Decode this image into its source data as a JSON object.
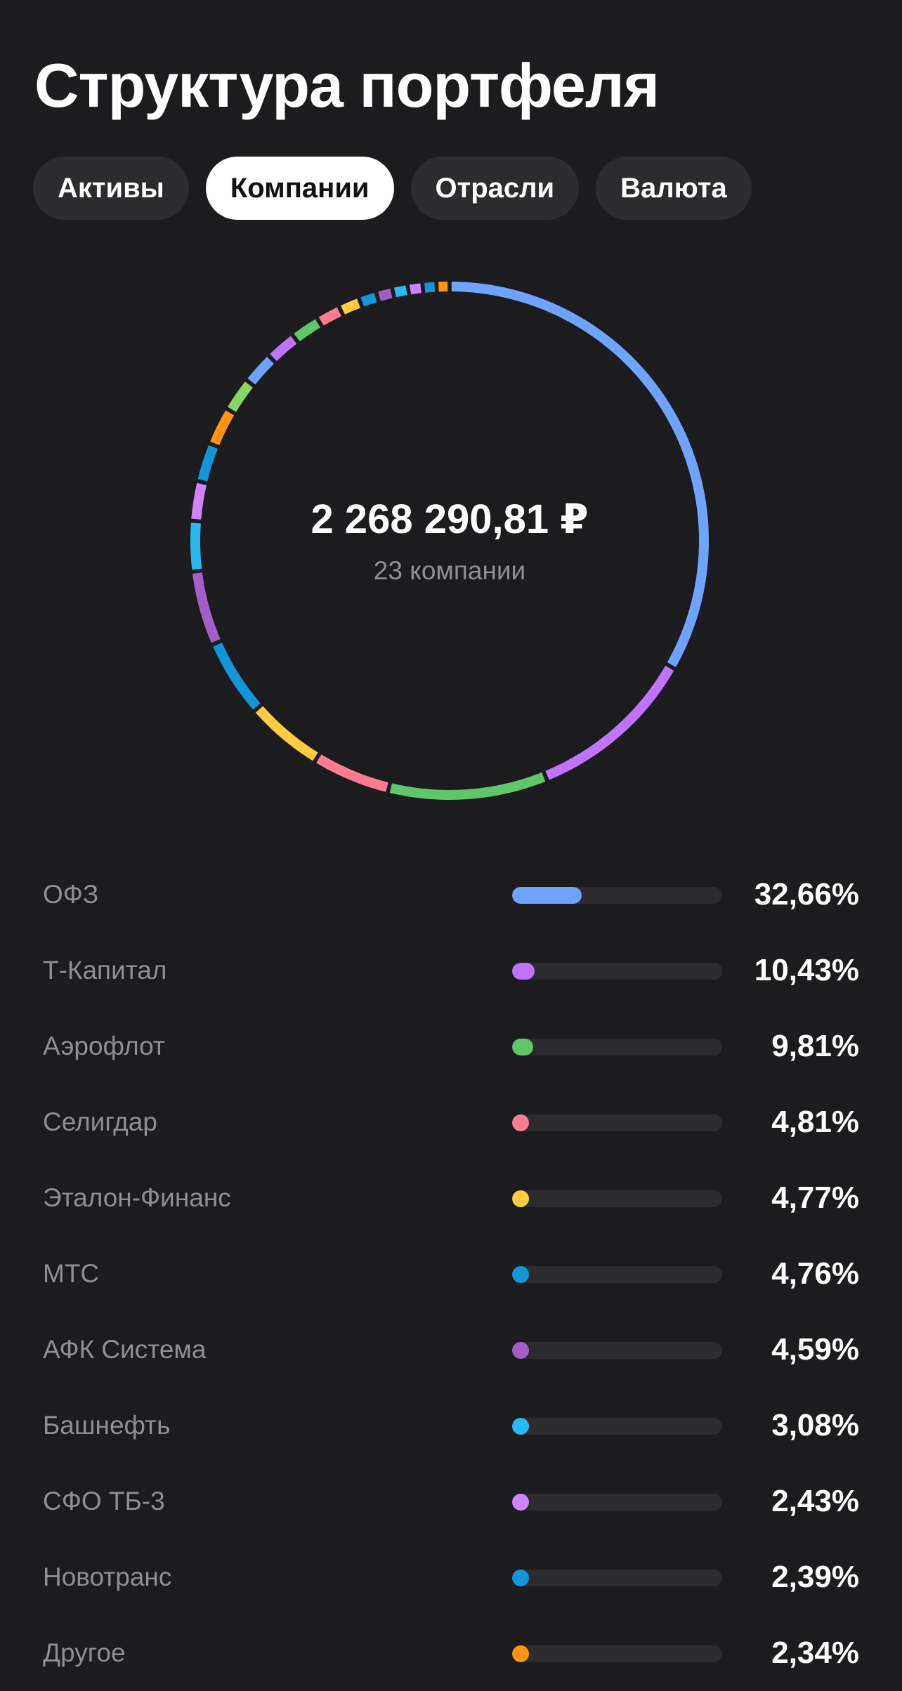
{
  "header": {
    "title": "Структура портфеля"
  },
  "tabs": [
    {
      "label": "Активы",
      "active": false
    },
    {
      "label": "Компании",
      "active": true
    },
    {
      "label": "Отрасли",
      "active": false
    },
    {
      "label": "Валюта",
      "active": false
    }
  ],
  "summary": {
    "total": "2 268 290,81 ₽",
    "count": "23 компании"
  },
  "chart_data": {
    "type": "pie",
    "categories": [
      "ОФЗ",
      "Т-Капитал",
      "Аэрофлот",
      "Селигдар",
      "Эталон-Финанс",
      "МТС",
      "АФК Система",
      "Башнефть",
      "СФО ТБ-3",
      "Новотранс",
      "Другое"
    ],
    "values": [
      32.66,
      10.43,
      9.81,
      4.81,
      4.77,
      4.76,
      4.59,
      3.08,
      2.43,
      2.39,
      2.34
    ],
    "colors": [
      "#6ea3ff",
      "#bf73ff",
      "#5fc66a",
      "#ff7b92",
      "#ffcc3f",
      "#1296d9",
      "#a35ec8",
      "#28b9f2",
      "#d083ff",
      "#1296d9",
      "#ff9410"
    ],
    "remaining_segments": [
      {
        "value": 2.1,
        "color": "#8ad461"
      },
      {
        "value": 2.0,
        "color": "#6ea3ff"
      },
      {
        "value": 1.9,
        "color": "#bf73ff"
      },
      {
        "value": 1.8,
        "color": "#5fc66a"
      },
      {
        "value": 1.5,
        "color": "#ff7b92"
      },
      {
        "value": 1.3,
        "color": "#ffcc3f"
      },
      {
        "value": 1.1,
        "color": "#1296d9"
      },
      {
        "value": 1.0,
        "color": "#a35ec8"
      },
      {
        "value": 0.95,
        "color": "#28b9f2"
      },
      {
        "value": 0.9,
        "color": "#d083ff"
      },
      {
        "value": 0.85,
        "color": "#1296d9"
      },
      {
        "value": 0.8,
        "color": "#ff9410"
      }
    ]
  },
  "list": {
    "items": [
      {
        "name": "ОФЗ",
        "percent": "32,66%"
      },
      {
        "name": "Т-Капитал",
        "percent": "10,43%"
      },
      {
        "name": "Аэрофлот",
        "percent": "9,81%"
      },
      {
        "name": "Селигдар",
        "percent": "4,81%"
      },
      {
        "name": "Эталон-Финанс",
        "percent": "4,77%"
      },
      {
        "name": "МТС",
        "percent": "4,76%"
      },
      {
        "name": "АФК Система",
        "percent": "4,59%"
      },
      {
        "name": "Башнефть",
        "percent": "3,08%"
      },
      {
        "name": "СФО ТБ-3",
        "percent": "2,43%"
      },
      {
        "name": "Новотранс",
        "percent": "2,39%"
      },
      {
        "name": "Другое",
        "percent": "2,34%"
      }
    ]
  }
}
